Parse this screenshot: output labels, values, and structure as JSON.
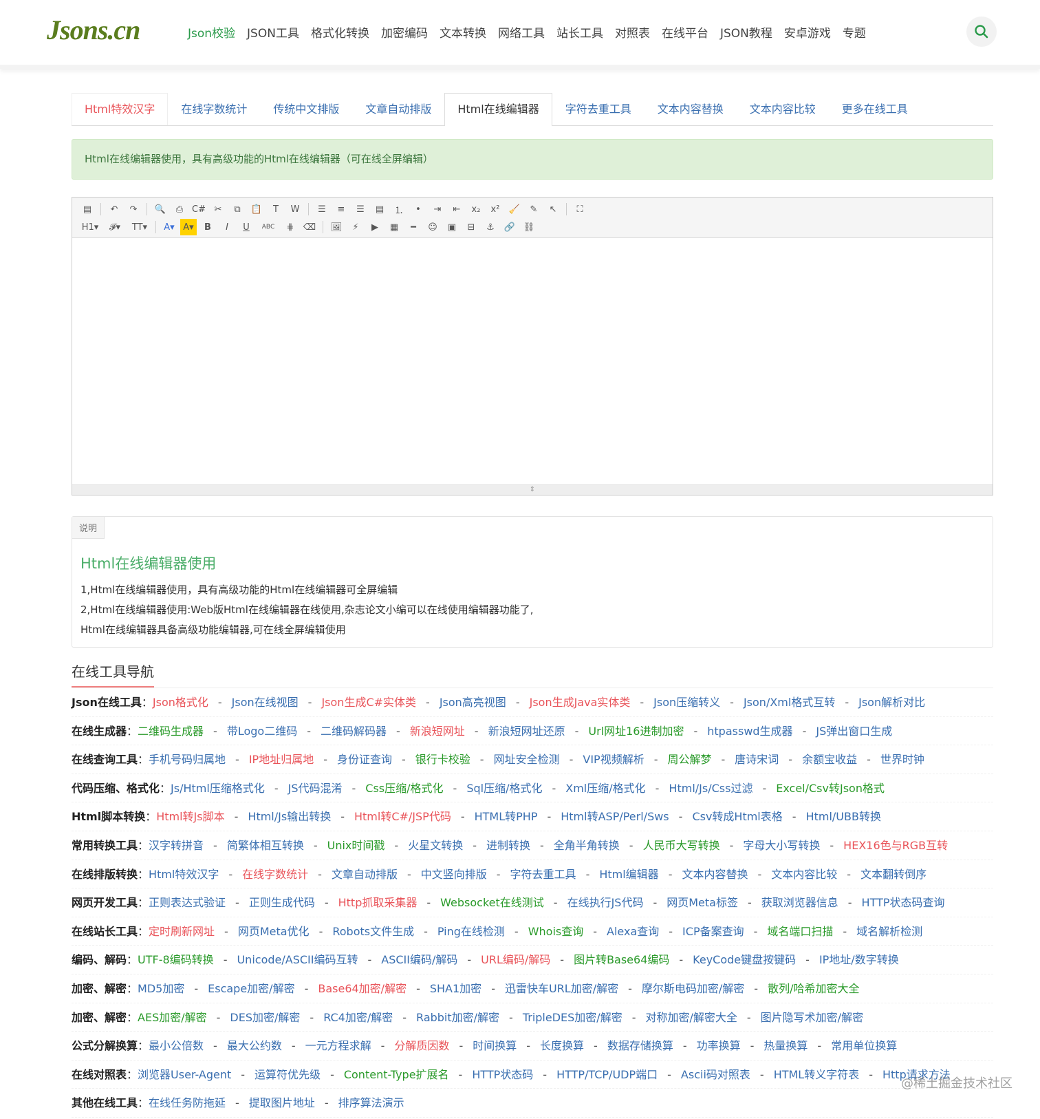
{
  "header": {
    "logo": "Jsons.cn",
    "nav": [
      "Json校验",
      "JSON工具",
      "格式化转换",
      "加密编码",
      "文本转换",
      "网络工具",
      "站长工具",
      "对照表",
      "在线平台",
      "JSON教程",
      "安卓游戏",
      "专题"
    ],
    "active_index": 0
  },
  "tabs": [
    "Html特效汉字",
    "在线字数统计",
    "传统中文排版",
    "文章自动排版",
    "Html在线编辑器",
    "字符去重工具",
    "文本内容替换",
    "文本内容比较",
    "更多在线工具"
  ],
  "active_tab": 4,
  "alert": "Html在线编辑器使用，具有高级功能的Html在线编辑器（可在线全屏编辑）",
  "toolbar": {
    "row1": [
      "source",
      "|",
      "undo",
      "redo",
      "|",
      "preview",
      "print",
      "code",
      "cut",
      "copy",
      "paste",
      "paste-text",
      "paste-word",
      "|",
      "align-left",
      "align-center",
      "align-right",
      "align-justify",
      "ordered-list",
      "unordered-list",
      "indent",
      "outdent",
      "subscript",
      "superscript",
      "clear-format",
      "select-all",
      "select",
      "|",
      "fullscreen"
    ],
    "row2": [
      "heading",
      "font-family",
      "font-size",
      "|",
      "font-color",
      "highlight",
      "bold",
      "italic",
      "underline",
      "strikethrough",
      "line-height",
      "eraser",
      "|",
      "image",
      "flash",
      "media",
      "table",
      "horizontal-rule",
      "emoticon",
      "image-manager",
      "page-break",
      "anchor",
      "link",
      "unlink"
    ]
  },
  "description": {
    "tag": "说明",
    "title": "Html在线编辑器使用",
    "lines": [
      "1,Html在线编辑器使用，具有高级功能的Html在线编辑器可全屏编辑",
      "2,Html在线编辑器使用:Web版Html在线编辑器在线使用,杂志论文小编可以在线使用编辑器功能了,",
      "Html在线编辑器具备高级功能编辑器,可在线全屏编辑使用"
    ]
  },
  "tool_nav": {
    "title": "在线工具导航",
    "separator": "-",
    "rows": [
      {
        "label": "Json在线工具",
        "links": [
          [
            "Json格式化",
            "r"
          ],
          [
            "Json在线视图",
            "b"
          ],
          [
            "Json生成C#实体类",
            "r"
          ],
          [
            "Json高亮视图",
            "b"
          ],
          [
            "Json生成Java实体类",
            "r"
          ],
          [
            "Json压缩转义",
            "b"
          ],
          [
            "Json/Xml格式互转",
            "b"
          ],
          [
            "Json解析对比",
            "b"
          ]
        ]
      },
      {
        "label": "在线生成器",
        "links": [
          [
            "二维码生成器",
            "g"
          ],
          [
            "带Logo二维码",
            "b"
          ],
          [
            "二维码解码器",
            "b"
          ],
          [
            "新浪短网址",
            "r"
          ],
          [
            "新浪短网址还原",
            "b"
          ],
          [
            "Url网址16进制加密",
            "g"
          ],
          [
            "htpasswd生成器",
            "b"
          ],
          [
            "JS弹出窗口生成",
            "b"
          ]
        ]
      },
      {
        "label": "在线查询工具",
        "links": [
          [
            "手机号码归属地",
            "b"
          ],
          [
            "IP地址归属地",
            "r"
          ],
          [
            "身份证查询",
            "b"
          ],
          [
            "银行卡校验",
            "g"
          ],
          [
            "网址安全检测",
            "b"
          ],
          [
            "VIP视频解析",
            "b"
          ],
          [
            "周公解梦",
            "g"
          ],
          [
            "唐诗宋词",
            "b"
          ],
          [
            "余额宝收益",
            "b"
          ],
          [
            "世界时钟",
            "b"
          ]
        ]
      },
      {
        "label": "代码压缩、格式化",
        "links": [
          [
            "Js/Html压缩格式化",
            "b"
          ],
          [
            "JS代码混淆",
            "b"
          ],
          [
            "Css压缩/格式化",
            "g"
          ],
          [
            "Sql压缩/格式化",
            "b"
          ],
          [
            "Xml压缩/格式化",
            "b"
          ],
          [
            "Html/Js/Css过滤",
            "b"
          ],
          [
            "Excel/Csv转Json格式",
            "g"
          ]
        ]
      },
      {
        "label": "Html脚本转换",
        "links": [
          [
            "Html转Js脚本",
            "r"
          ],
          [
            "Html/Js输出转换",
            "b"
          ],
          [
            "Html转C#/JSP代码",
            "r"
          ],
          [
            "HTML转PHP",
            "b"
          ],
          [
            "Html转ASP/Perl/Sws",
            "b"
          ],
          [
            "Csv转成Html表格",
            "b"
          ],
          [
            "Html/UBB转换",
            "b"
          ]
        ]
      },
      {
        "label": "常用转换工具",
        "links": [
          [
            "汉字转拼音",
            "b"
          ],
          [
            "简繁体相互转换",
            "b"
          ],
          [
            "Unix时间戳",
            "g"
          ],
          [
            "火星文转换",
            "b"
          ],
          [
            "进制转换",
            "b"
          ],
          [
            "全角半角转换",
            "b"
          ],
          [
            "人民币大写转换",
            "g"
          ],
          [
            "字母大小写转换",
            "b"
          ],
          [
            "HEX16色与RGB互转",
            "r"
          ]
        ]
      },
      {
        "label": "在线排版转换",
        "links": [
          [
            "Html特效汉字",
            "b"
          ],
          [
            "在线字数统计",
            "r"
          ],
          [
            "文章自动排版",
            "b"
          ],
          [
            "中文竖向排版",
            "b"
          ],
          [
            "字符去重工具",
            "b"
          ],
          [
            "Html编辑器",
            "b"
          ],
          [
            "文本内容替换",
            "b"
          ],
          [
            "文本内容比较",
            "b"
          ],
          [
            "文本翻转倒序",
            "b"
          ]
        ]
      },
      {
        "label": "网页开发工具",
        "links": [
          [
            "正则表达式验证",
            "b"
          ],
          [
            "正则生成代码",
            "b"
          ],
          [
            "Http抓取采集器",
            "r"
          ],
          [
            "Websocket在线测试",
            "g"
          ],
          [
            "在线执行JS代码",
            "b"
          ],
          [
            "网页Meta标签",
            "b"
          ],
          [
            "获取浏览器信息",
            "b"
          ],
          [
            "HTTP状态码查询",
            "b"
          ]
        ]
      },
      {
        "label": "在线站长工具",
        "links": [
          [
            "定时刷新网址",
            "r"
          ],
          [
            "网页Meta优化",
            "b"
          ],
          [
            "Robots文件生成",
            "b"
          ],
          [
            "Ping在线检测",
            "b"
          ],
          [
            "Whois查询",
            "g"
          ],
          [
            "Alexa查询",
            "b"
          ],
          [
            "ICP备案查询",
            "b"
          ],
          [
            "域名端口扫描",
            "g"
          ],
          [
            "域名解析检测",
            "b"
          ]
        ]
      },
      {
        "label": "编码、解码",
        "links": [
          [
            "UTF-8编码转换",
            "g"
          ],
          [
            "Unicode/ASCII编码互转",
            "b"
          ],
          [
            "ASCII编码/解码",
            "b"
          ],
          [
            "URL编码/解码",
            "r"
          ],
          [
            "图片转Base64编码",
            "g"
          ],
          [
            "KeyCode键盘按键码",
            "b"
          ],
          [
            "IP地址/数字转换",
            "b"
          ]
        ]
      },
      {
        "label": "加密、解密",
        "links": [
          [
            "MD5加密",
            "b"
          ],
          [
            "Escape加密/解密",
            "b"
          ],
          [
            "Base64加密/解密",
            "r"
          ],
          [
            "SHA1加密",
            "b"
          ],
          [
            "迅雷快车URL加密/解密",
            "b"
          ],
          [
            "摩尔斯电码加密/解密",
            "b"
          ],
          [
            "散列/哈希加密大全",
            "g"
          ]
        ]
      },
      {
        "label": "加密、解密",
        "links": [
          [
            "AES加密/解密",
            "g"
          ],
          [
            "DES加密/解密",
            "b"
          ],
          [
            "RC4加密/解密",
            "b"
          ],
          [
            "Rabbit加密/解密",
            "b"
          ],
          [
            "TripleDES加密/解密",
            "b"
          ],
          [
            "对称加密/解密大全",
            "b"
          ],
          [
            "图片隐写术加密/解密",
            "b"
          ]
        ]
      },
      {
        "label": "公式分解换算",
        "links": [
          [
            "最小公倍数",
            "b"
          ],
          [
            "最大公约数",
            "b"
          ],
          [
            "一元方程求解",
            "b"
          ],
          [
            "分解质因数",
            "r"
          ],
          [
            "时间换算",
            "b"
          ],
          [
            "长度换算",
            "b"
          ],
          [
            "数据存储换算",
            "b"
          ],
          [
            "功率换算",
            "b"
          ],
          [
            "热量换算",
            "b"
          ],
          [
            "常用单位换算",
            "b"
          ]
        ]
      },
      {
        "label": "在线对照表",
        "links": [
          [
            "浏览器User-Agent",
            "b"
          ],
          [
            "运算符优先级",
            "b"
          ],
          [
            "Content-Type扩展名",
            "g"
          ],
          [
            "HTTP状态码",
            "b"
          ],
          [
            "HTTP/TCP/UDP端口",
            "b"
          ],
          [
            "Ascii码对照表",
            "b"
          ],
          [
            "HTML转义字符表",
            "b"
          ],
          [
            "Http请求方法",
            "b"
          ]
        ]
      },
      {
        "label": "其他在线工具",
        "links": [
          [
            "在线任务防拖延",
            "b"
          ],
          [
            "提取图片地址",
            "b"
          ],
          [
            "排序算法演示",
            "b"
          ]
        ]
      }
    ]
  },
  "colors": {
    "b": "#3a6fb0",
    "r": "#e9545a",
    "g": "#2a9a2a",
    "accent": "#2a9a4a"
  },
  "watermark": "@稀土掘金技术社区"
}
